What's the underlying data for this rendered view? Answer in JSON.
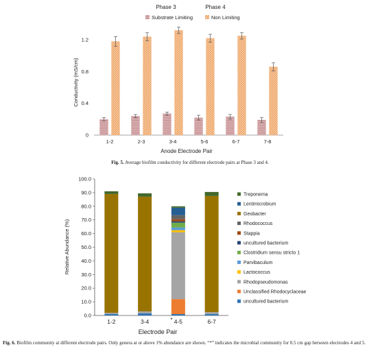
{
  "figure5": {
    "caption_label": "Fig. 5.",
    "caption_text": "Average biofilm conductivity for different electrode pairs at Phase 3 and 4.",
    "phase_labels": [
      "Phase 3",
      "Phase 4"
    ]
  },
  "figure6": {
    "caption_label": "Fig. 6.",
    "caption_text": "Biofilm community at different electrode pairs. Only genera at or above 1% abundance are shown. “*” indicates the microbial community for 0.5 cm gap between electrodes 4 and 5.",
    "asterisk": "*"
  },
  "colors": {
    "substrate": "#c79294",
    "nonlimiting": "#f0b27d"
  },
  "chart_data": [
    {
      "type": "bar",
      "title": "",
      "xlabel": "Anode Electrode Pair",
      "ylabel": "Conductivity (mS/cm)",
      "categories": [
        "1-2",
        "2-3",
        "3-4",
        "5-6",
        "6-7",
        "7-8"
      ],
      "ylim": [
        0,
        1.4
      ],
      "yticks": [
        "0",
        "0.4",
        "0.8",
        "1.2"
      ],
      "ytick_values": [
        0,
        0.4,
        0.8,
        1.2
      ],
      "legend": "top",
      "grid": false,
      "series": [
        {
          "name": "Substrate Limiting",
          "values": [
            0.2,
            0.24,
            0.27,
            0.22,
            0.23,
            0.19
          ],
          "errors": [
            0.02,
            0.02,
            0.02,
            0.03,
            0.03,
            0.03
          ]
        },
        {
          "name": "Non Limiting",
          "values": [
            1.18,
            1.24,
            1.32,
            1.22,
            1.25,
            0.86
          ],
          "errors": [
            0.06,
            0.05,
            0.04,
            0.05,
            0.04,
            0.05
          ]
        }
      ]
    },
    {
      "type": "bar",
      "stacked": true,
      "title": "",
      "xlabel": "Electrode Pair",
      "ylabel": "Relative Abundance (%)",
      "categories": [
        "1-2",
        "3-4",
        "4-5",
        "6-7"
      ],
      "ylim": [
        0,
        100
      ],
      "yticks": [
        "0.0",
        "10.0",
        "20.0",
        "30.0",
        "40.0",
        "50.0",
        "60.0",
        "70.0",
        "80.0",
        "90.0",
        "100.0"
      ],
      "ytick_values": [
        0,
        10,
        20,
        30,
        40,
        50,
        60,
        70,
        80,
        90,
        100
      ],
      "legend": "right",
      "grid": false,
      "series": [
        {
          "name": "uncultured bacterium",
          "color": "#2e75b6",
          "values": [
            1.0,
            1.5,
            1.0,
            1.0
          ]
        },
        {
          "name": "Unclassified Rhodocyclaceae",
          "color": "#ed7d31",
          "values": [
            0.0,
            0.0,
            11.0,
            0.0
          ]
        },
        {
          "name": "Rhodopseudomonas",
          "color": "#a5a5a5",
          "values": [
            1.0,
            1.5,
            49.0,
            1.5
          ]
        },
        {
          "name": "Lactococcus",
          "color": "#ffc000",
          "values": [
            0.0,
            0.0,
            1.5,
            0.0
          ]
        },
        {
          "name": "Parvibaculum",
          "color": "#5b9bd5",
          "values": [
            0.0,
            0.0,
            2.0,
            0.0
          ]
        },
        {
          "name": "Clostridium sensu stricto 1",
          "color": "#70ad47",
          "values": [
            0.0,
            0.0,
            3.5,
            0.0
          ]
        },
        {
          "name": "uncultured bacterium",
          "color": "#264478",
          "values": [
            0.0,
            0.0,
            1.0,
            0.0
          ]
        },
        {
          "name": "Stappia",
          "color": "#9e480e",
          "values": [
            0.0,
            0.0,
            1.5,
            0.0
          ]
        },
        {
          "name": "Rhodococcus",
          "color": "#636363",
          "values": [
            0.0,
            0.0,
            3.0,
            0.0
          ]
        },
        {
          "name": "Geobacter",
          "color": "#997300",
          "values": [
            87.0,
            84.0,
            0.0,
            85.0
          ]
        },
        {
          "name": "Lentimicrobium",
          "color": "#255e91",
          "values": [
            0.0,
            0.0,
            5.5,
            0.0
          ]
        },
        {
          "name": "Treponema",
          "color": "#43682b",
          "values": [
            2.0,
            2.5,
            1.0,
            3.0
          ]
        }
      ]
    }
  ]
}
